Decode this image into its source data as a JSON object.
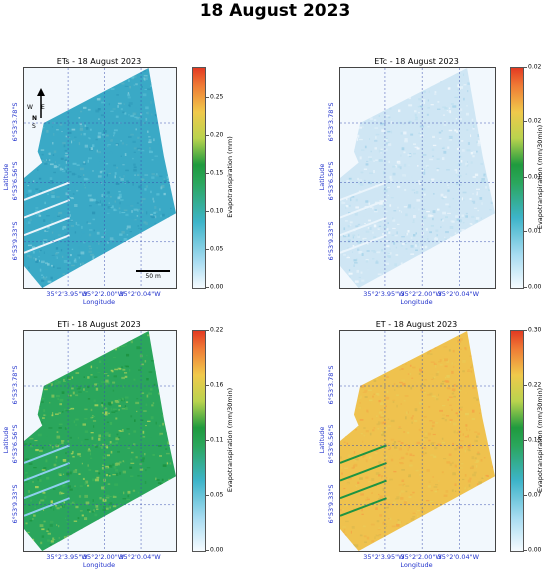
{
  "title": "18 August 2023",
  "axis": {
    "xlabel": "Longitude",
    "ylabel": "Latitude",
    "lon_ticks": [
      "35°2'3.95\"W",
      "35°2'2.00\"W",
      "35°2'0.04\"W"
    ],
    "lat_ticks": [
      "6°53'3.78\"S",
      "6°53'6.56\"S",
      "6°53'9.33\"S"
    ]
  },
  "north_arrow": {
    "n": "N",
    "w": "W",
    "e": "E",
    "s": "S"
  },
  "scale_bar": {
    "label": "50 m"
  },
  "panels": [
    {
      "id": "ets",
      "title": "ETs - 18 August 2023",
      "cbar_label": "Evapotranspiration (mm)",
      "ticks": [
        "0.00",
        "0.05",
        "0.10",
        "0.15",
        "0.20",
        "0.25"
      ],
      "vmin": 0,
      "vmax": 0.29,
      "tick_values": [
        0,
        0.05,
        0.1,
        0.15,
        0.2,
        0.25
      ],
      "palette": "teal",
      "show_north": true,
      "show_scale": true
    },
    {
      "id": "etc",
      "title": "ETc - 18 August 2023",
      "cbar_label": "Evapotranspiration (mm/30min)",
      "ticks": [
        "0.00",
        "0.01",
        "0.01",
        "0.02",
        "0.02"
      ],
      "vmin": 0,
      "vmax": 0.021,
      "tick_values": [
        0,
        0.0053,
        0.0105,
        0.0158,
        0.021
      ],
      "palette": "pale",
      "show_north": false,
      "show_scale": false
    },
    {
      "id": "eti",
      "title": "ETi - 18 August 2023",
      "cbar_label": "Evapotranspiration (mm/30min)",
      "ticks": [
        "0.00",
        "0.05",
        "0.11",
        "0.16",
        "0.22"
      ],
      "vmin": 0,
      "vmax": 0.22,
      "tick_values": [
        0,
        0.055,
        0.11,
        0.165,
        0.22
      ],
      "palette": "green",
      "show_north": false,
      "show_scale": false
    },
    {
      "id": "et",
      "title": "ET - 18 August 2023",
      "cbar_label": "Evapotranspiration (mm/30min)",
      "ticks": [
        "0.00",
        "0.07",
        "0.15",
        "0.22",
        "0.30"
      ],
      "vmin": 0,
      "vmax": 0.3,
      "tick_values": [
        0,
        0.075,
        0.15,
        0.225,
        0.3
      ],
      "palette": "yellow",
      "show_north": false,
      "show_scale": false
    }
  ],
  "colors": {
    "teal": [
      "#3aa9c6",
      "#5bbfd6",
      "#2d97b8",
      "#7cc9d9",
      "#55b0c2"
    ],
    "pale": [
      "#cfe6f4",
      "#e4f1f9",
      "#a9d4ea",
      "#bfe0f0",
      "#f0f7fc"
    ],
    "green": [
      "#2aa65c",
      "#3cb15a",
      "#7cc25a",
      "#1d9442",
      "#a3cf5a"
    ],
    "yellow": [
      "#efc24e",
      "#f0b347",
      "#e9cc58",
      "#d9b84d",
      "#f4a646"
    ]
  }
}
